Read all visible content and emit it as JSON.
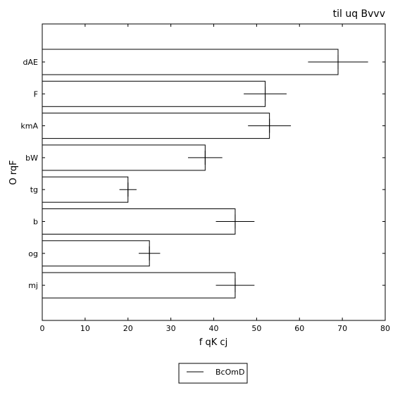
{
  "chart_data": {
    "type": "bar",
    "orientation": "horizontal",
    "title": "til uq Bvvv",
    "xlabel": "f qK cj",
    "ylabel": "O rqF",
    "categories": [
      "dAE",
      "F",
      "kmA",
      "bW",
      "tg",
      "b",
      "og",
      "mj"
    ],
    "series": [
      {
        "name": "BcOmD",
        "values": [
          69,
          52,
          53,
          38,
          20,
          45,
          25,
          45
        ],
        "errors": [
          7,
          5,
          5,
          4,
          2,
          4.5,
          2.5,
          4.5
        ]
      }
    ],
    "xlim": [
      0,
      80
    ],
    "xticks": [
      0,
      10,
      20,
      30,
      40,
      50,
      60,
      70,
      80
    ],
    "grid": false,
    "legend_position": "bottom-center",
    "colors": {
      "bar_fill": "#ffffff",
      "bar_stroke": "#000000",
      "axis": "#000000"
    }
  }
}
